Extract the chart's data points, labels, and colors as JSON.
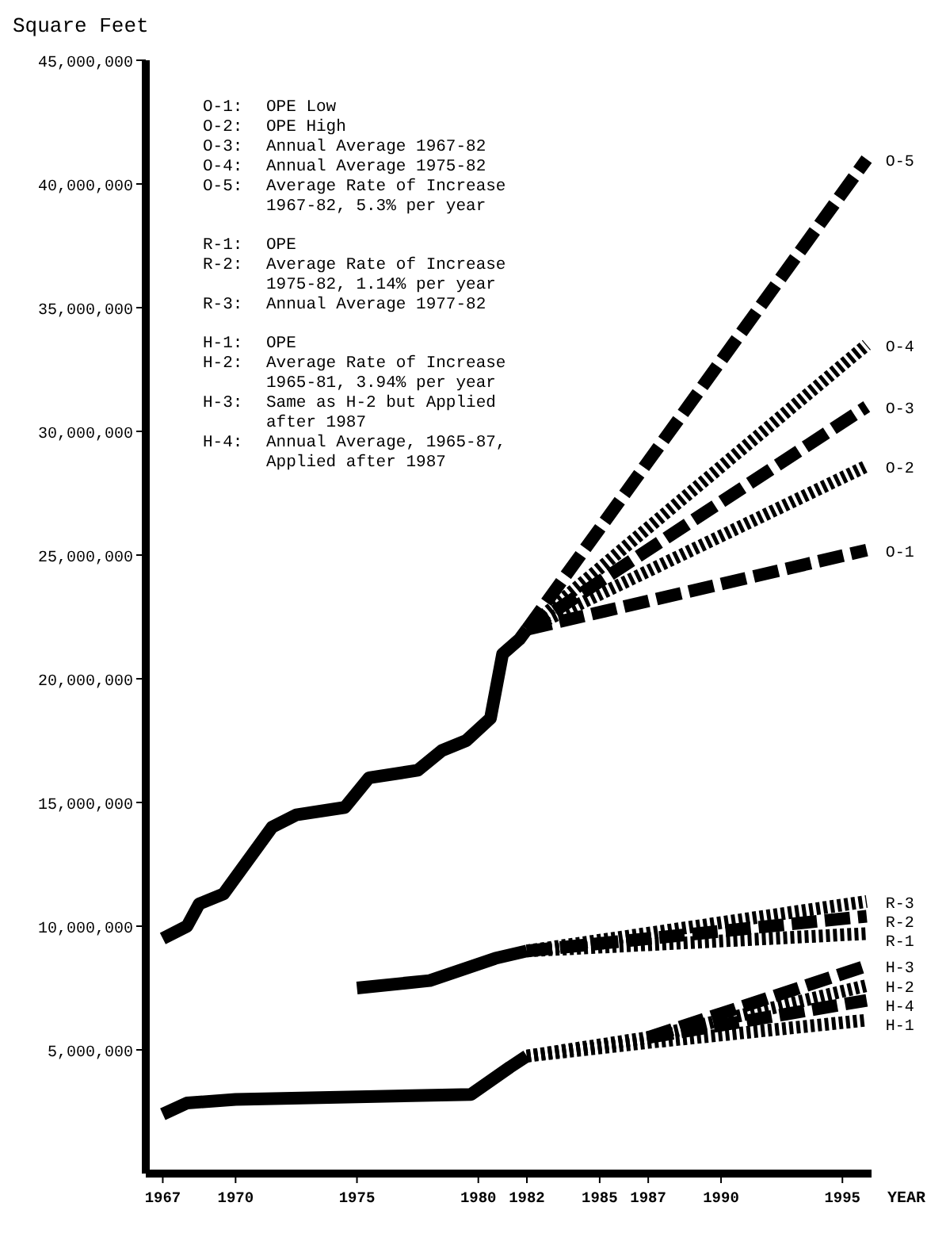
{
  "chart_data": {
    "type": "line",
    "ylabel": "Square Feet",
    "xlabel": "YEAR",
    "xlim": [
      1966.3,
      1996.2
    ],
    "xticks": [
      1967,
      1970,
      1975,
      1980,
      1982,
      1985,
      1987,
      1990,
      1995
    ],
    "ylim": [
      0,
      45000000
    ],
    "yticks": [
      {
        "value": 5000000,
        "label": "5,000,000"
      },
      {
        "value": 10000000,
        "label": "10,000,000"
      },
      {
        "value": 15000000,
        "label": "15,000,000"
      },
      {
        "value": 20000000,
        "label": "20,000,000"
      },
      {
        "value": 25000000,
        "label": "25,000,000"
      },
      {
        "value": 30000000,
        "label": "30,000,000"
      },
      {
        "value": 35000000,
        "label": "35,000,000"
      },
      {
        "value": 40000000,
        "label": "40,000,000"
      },
      {
        "value": 45000000,
        "label": "45,000,000"
      }
    ],
    "grid": false,
    "annotations": [
      "O-1: OPE Low",
      "O-2: OPE High",
      "O-3: Annual Average 1967-82",
      "O-4: Annual Average 1975-82",
      "O-5: Average Rate of Increase 1967-82, 5.3% per year",
      "R-1: OPE",
      "R-2: Average Rate of Increase 1975-82, 1.14% per year",
      "R-3: Annual Average 1977-82",
      "H-1: OPE",
      "H-2: Average Rate of Increase 1965-81, 3.94% per year",
      "H-3: Same as H-2 but Applied after 1987",
      "H-4: Annual Average, 1965-87, Applied after 1987"
    ],
    "series": [
      {
        "color": "#000000",
        "line_style": "solid",
        "x": [
          1967,
          1968,
          1968.5,
          1969.5,
          1971.5,
          1972.5,
          1974.5,
          1975.5,
          1977.5,
          1978.5,
          1979.5,
          1980.5,
          1981,
          1981.7,
          1982
        ],
        "values": [
          9500000,
          10000000,
          10900000,
          11300000,
          14000000,
          14500000,
          14800000,
          16000000,
          16300000,
          17100000,
          17500000,
          18400000,
          21000000,
          21600000,
          22000000
        ]
      },
      {
        "name": "O-5",
        "color": "#000000",
        "line_style": "dashed",
        "x": [
          1982,
          1996
        ],
        "values": [
          22000000,
          41000000
        ]
      },
      {
        "name": "O-4",
        "color": "#000000",
        "line_style": "dotted",
        "x": [
          1982,
          1996
        ],
        "values": [
          22000000,
          33500000
        ]
      },
      {
        "name": "O-3",
        "color": "#000000",
        "line_style": "dashed",
        "x": [
          1982,
          1996
        ],
        "values": [
          22000000,
          31000000
        ]
      },
      {
        "name": "O-2",
        "color": "#000000",
        "line_style": "dotted",
        "x": [
          1982,
          1996
        ],
        "values": [
          22000000,
          28600000
        ]
      },
      {
        "name": "O-1",
        "color": "#000000",
        "line_style": "dashed",
        "x": [
          1982,
          1996
        ],
        "values": [
          22000000,
          25200000
        ]
      },
      {
        "color": "#000000",
        "line_style": "solid",
        "x": [
          1975,
          1978,
          1980.7,
          1982
        ],
        "values": [
          7500000,
          7800000,
          8700000,
          9000000
        ]
      },
      {
        "name": "R-3",
        "color": "#000000",
        "line_style": "dotted",
        "x": [
          1982,
          1996
        ],
        "values": [
          9000000,
          11000000
        ]
      },
      {
        "name": "R-2",
        "color": "#000000",
        "line_style": "dashed",
        "x": [
          1982,
          1996
        ],
        "values": [
          9000000,
          10400000
        ]
      },
      {
        "name": "R-1",
        "color": "#000000",
        "line_style": "dotted",
        "x": [
          1982,
          1996
        ],
        "values": [
          9000000,
          9700000
        ]
      },
      {
        "color": "#000000",
        "line_style": "solid",
        "x": [
          1967,
          1968,
          1970,
          1979.7,
          1981.3,
          1982
        ],
        "values": [
          2400000,
          2850000,
          3000000,
          3200000,
          4300000,
          4750000
        ]
      },
      {
        "name": "H-3",
        "color": "#000000",
        "line_style": "dashed",
        "x": [
          1987,
          1996
        ],
        "values": [
          5500000,
          8400000
        ]
      },
      {
        "name": "H-2",
        "color": "#000000",
        "line_style": "dotted",
        "x": [
          1982,
          1987,
          1996
        ],
        "values": [
          4750000,
          5500000,
          7600000
        ]
      },
      {
        "name": "H-4",
        "color": "#000000",
        "line_style": "dashed",
        "x": [
          1987,
          1996
        ],
        "values": [
          5500000,
          7000000
        ]
      },
      {
        "name": "H-1",
        "color": "#000000",
        "line_style": "dotted",
        "x": [
          1982,
          1987,
          1996
        ],
        "values": [
          4750000,
          5300000,
          6200000
        ]
      }
    ]
  }
}
